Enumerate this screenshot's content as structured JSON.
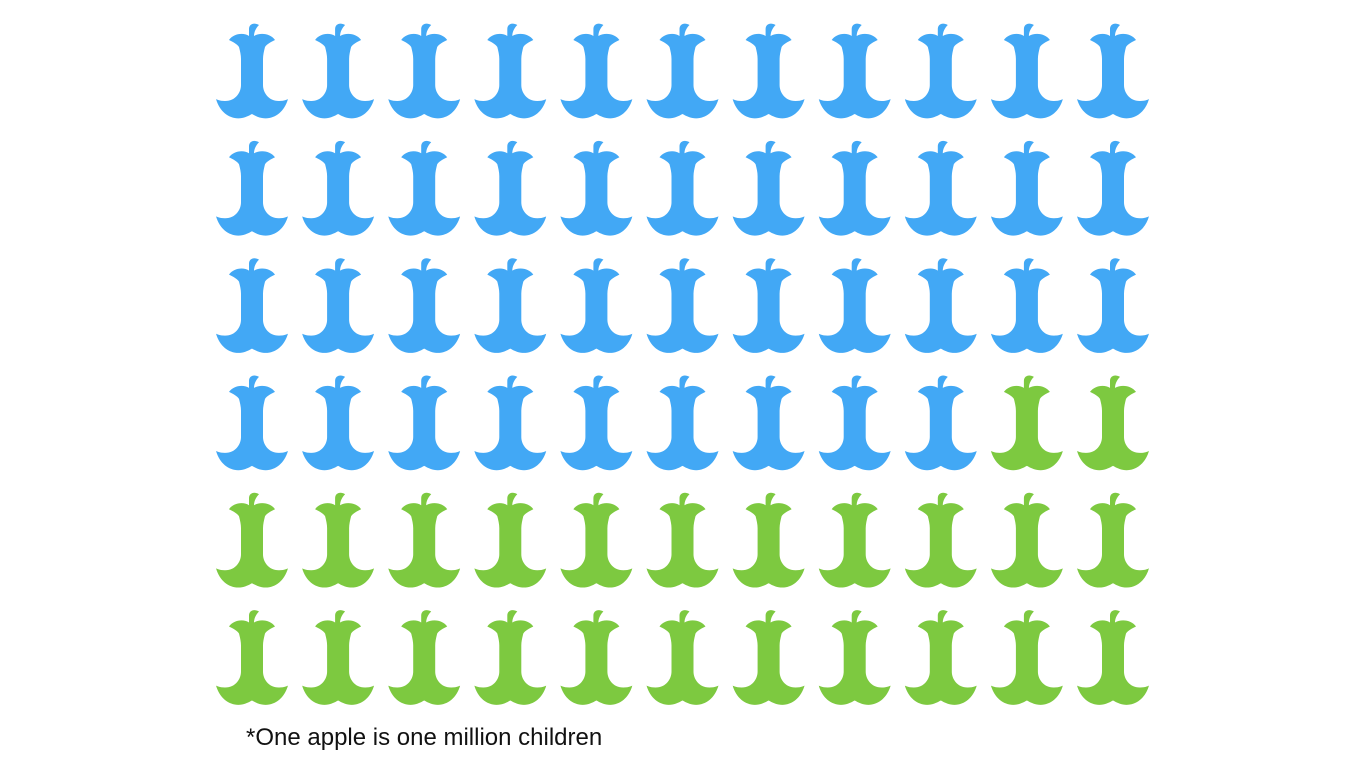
{
  "chart_data": {
    "type": "pictogram",
    "icon": "apple-core-icon",
    "unit_note": "*One apple is one million children",
    "units_per_icon": 1000000,
    "columns": 11,
    "rows": 6,
    "total_icons": 66,
    "series": [
      {
        "icons": 42,
        "color": "#42a8f5"
      },
      {
        "icons": 24,
        "color": "#7dc940"
      }
    ]
  }
}
